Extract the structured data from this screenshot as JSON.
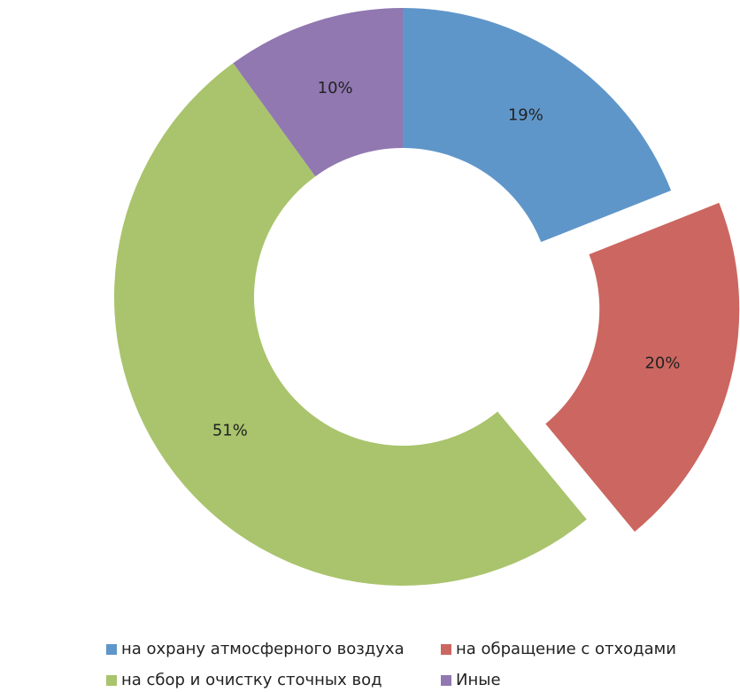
{
  "chart_data": {
    "type": "donut",
    "categories": [
      "на охрану атмосферного воздуха",
      "на обращение с отходами",
      "на сбор и очистку сточных вод",
      "Иные"
    ],
    "values": [
      19,
      20,
      51,
      10
    ],
    "value_labels": [
      "19%",
      "20%",
      "51%",
      "10%"
    ],
    "colors": [
      "#5f96c9",
      "#cc6660",
      "#a9c46c",
      "#9178b1"
    ],
    "legend": "bottom"
  }
}
